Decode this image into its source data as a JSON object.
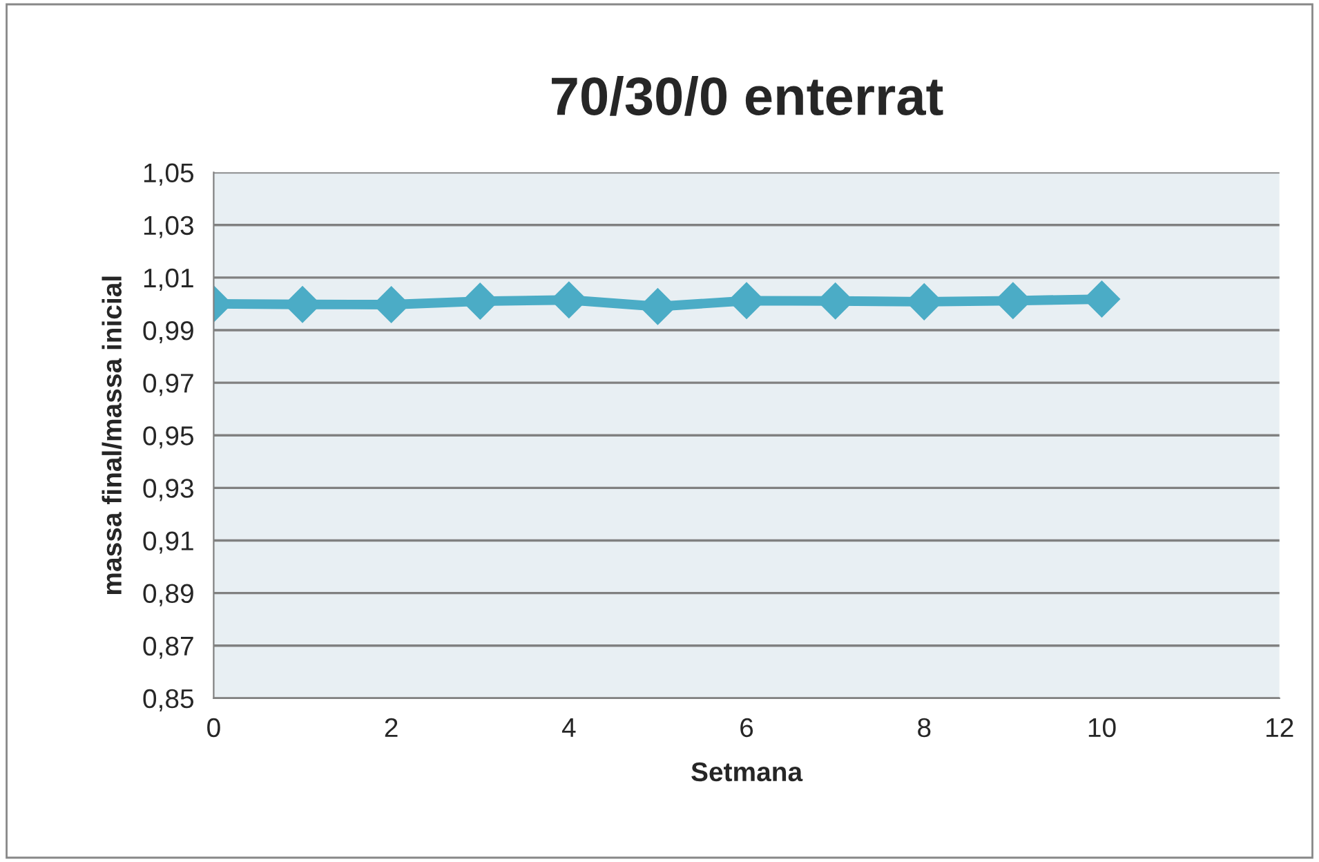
{
  "chart_data": {
    "type": "line",
    "title": "70/30/0 enterrat",
    "xlabel": "Setmana",
    "ylabel": "massa final/massa inicial",
    "x": [
      0,
      1,
      2,
      3,
      4,
      5,
      6,
      7,
      8,
      9,
      10
    ],
    "series": [
      {
        "color": "#4bacc6",
        "values": [
          1.0,
          0.9998,
          0.9997,
          1.001,
          1.0015,
          0.999,
          1.0012,
          1.0011,
          1.0008,
          1.0012,
          1.0018
        ]
      }
    ],
    "xlim": [
      0,
      12
    ],
    "xticks": [
      0,
      2,
      4,
      6,
      8,
      10,
      12
    ],
    "ylim": [
      0.85,
      1.05
    ],
    "yticks": [
      {
        "value": 0.85,
        "label": "0,85"
      },
      {
        "value": 0.87,
        "label": "0,87"
      },
      {
        "value": 0.89,
        "label": "0,89"
      },
      {
        "value": 0.91,
        "label": "0,91"
      },
      {
        "value": 0.93,
        "label": "0,93"
      },
      {
        "value": 0.95,
        "label": "0,95"
      },
      {
        "value": 0.97,
        "label": "0,97"
      },
      {
        "value": 0.99,
        "label": "0,99"
      },
      {
        "value": 1.01,
        "label": "1,01"
      },
      {
        "value": 1.03,
        "label": "1,03"
      },
      {
        "value": 1.05,
        "label": "1,05"
      }
    ],
    "grid": "y",
    "marker": "diamond",
    "line_style": "solid",
    "legend": false
  }
}
